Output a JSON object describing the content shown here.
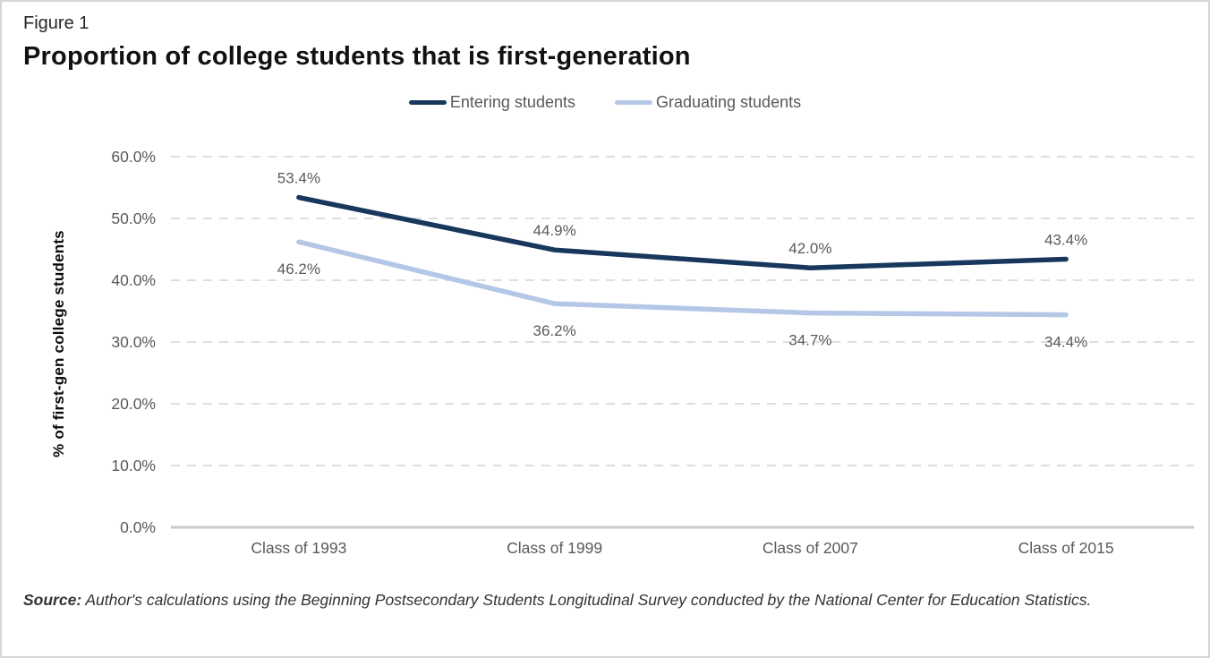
{
  "figure_label": "Figure 1",
  "title": "Proportion of college students that is first-generation",
  "legend": [
    {
      "label": "Entering students",
      "color": "#17375C"
    },
    {
      "label": "Graduating students",
      "color": "#B4C7E7"
    }
  ],
  "y_axis_title": "% of first-gen college students",
  "source": {
    "prefix": "Source:",
    "text": " Author's calculations using the Beginning Postsecondary Students Longitudinal Survey conducted by the National Center for Education Statistics."
  },
  "chart_data": {
    "type": "line",
    "title": "Proportion of college students that is first-generation",
    "xlabel": "",
    "ylabel": "% of first-gen college students",
    "categories": [
      "Class of 1993",
      "Class of 1999",
      "Class of 2007",
      "Class of 2015"
    ],
    "series": [
      {
        "name": "Entering students",
        "color": "#17375C",
        "values": [
          53.4,
          44.9,
          42.0,
          43.4
        ],
        "point_labels": [
          "53.4%",
          "44.9%",
          "42.0%",
          "43.4%"
        ],
        "label_position": "above"
      },
      {
        "name": "Graduating students",
        "color": "#B4C7E7",
        "values": [
          46.2,
          36.2,
          34.7,
          34.4
        ],
        "point_labels": [
          "46.2%",
          "36.2%",
          "34.7%",
          "34.4%"
        ],
        "label_position": "below"
      }
    ],
    "y_ticks": [
      {
        "label": "60.0%",
        "value": 60
      },
      {
        "label": "50.0%",
        "value": 50
      },
      {
        "label": "40.0%",
        "value": 40
      },
      {
        "label": "30.0%",
        "value": 30
      },
      {
        "label": "20.0%",
        "value": 20
      },
      {
        "label": "10.0%",
        "value": 10
      },
      {
        "label": "0.0%",
        "value": 0
      }
    ],
    "ylim": [
      0,
      60
    ],
    "grid": "horizontal-dashed",
    "legend_position": "top-center",
    "colors": {
      "grid_line": "#d4d4d4",
      "axis_line": "#c9c9c9",
      "tick_text": "#595959",
      "data_label_text": "#595959"
    }
  }
}
